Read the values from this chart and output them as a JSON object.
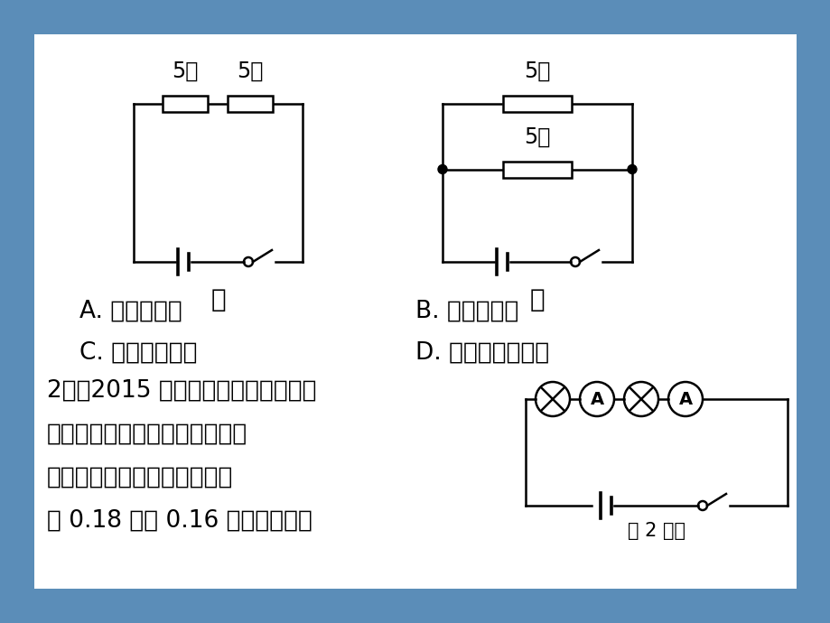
{
  "bg_outer": "#5b8db8",
  "bg_inner": "#ffffff",
  "line_color": "#000000",
  "text_color": "#000000",
  "choices": [
    [
      "A. 只有甲符合",
      "B. 只有乙符合"
    ],
    [
      "C. 甲、乙都符合",
      "D. 甲、乙都不符合"
    ]
  ],
  "q2_text_lines": [
    "2．（2015 年湖州市）连接如图所示",
    "电路，研究串联电路中的特点实",
    "验时电流表甲和乙的示数分别",
    "为 0.18 安和 0.16 安，造成两个"
  ],
  "q2_diagram_label": "第 2 题图",
  "font_size_choice": 19,
  "font_size_q2": 19,
  "font_size_label": 17,
  "font_size_circuit_label": 20
}
